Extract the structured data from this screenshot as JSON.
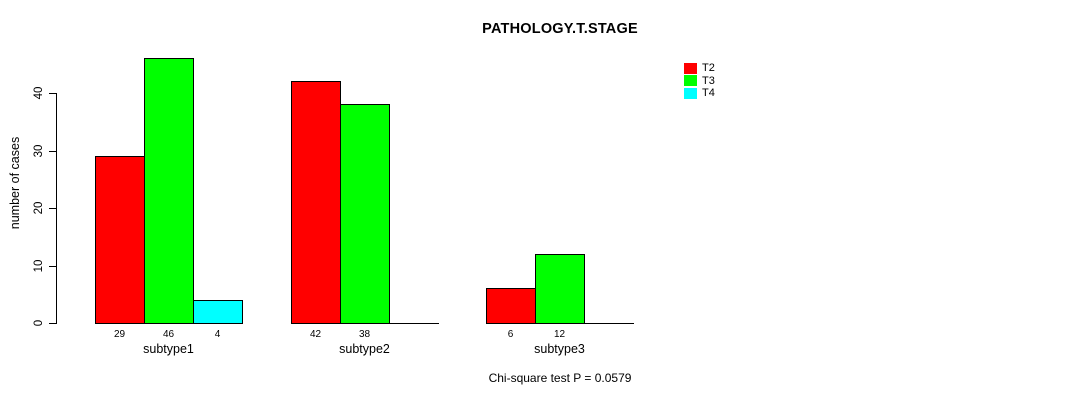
{
  "chart_data": {
    "type": "bar",
    "title": "PATHOLOGY.T.STAGE",
    "categories": [
      "subtype1",
      "subtype2",
      "subtype3"
    ],
    "series": [
      {
        "name": "T2",
        "color": "#ff0000",
        "values": [
          29,
          42,
          6
        ]
      },
      {
        "name": "T3",
        "color": "#00ff00",
        "values": [
          46,
          38,
          12
        ]
      },
      {
        "name": "T4",
        "color": "#00ffff",
        "values": [
          4,
          0,
          0
        ]
      }
    ],
    "ylabel": "number of cases",
    "xlabel": "",
    "yticks": [
      0,
      10,
      20,
      30,
      40
    ],
    "ylim": [
      0,
      46
    ],
    "grid": false,
    "legend": {
      "entries": [
        "T2",
        "T3",
        "T4"
      ],
      "position": "top-right"
    },
    "bar_value_labels": true,
    "annotation": "Chi-square test P = 0.0579"
  },
  "colors": {
    "background": "#ffffff",
    "axis": "#000000",
    "text": "#000000"
  }
}
